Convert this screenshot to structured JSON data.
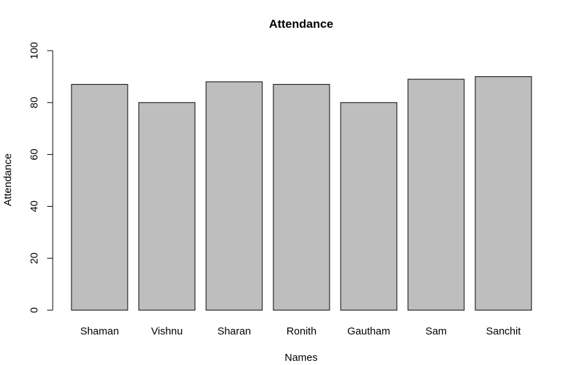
{
  "chart_data": {
    "type": "bar",
    "title": "Attendance",
    "xlabel": "Names",
    "ylabel": "Attendance",
    "categories": [
      "Shaman",
      "Vishnu",
      "Sharan",
      "Ronith",
      "Gautham",
      "Sam",
      "Sanchit"
    ],
    "values": [
      87,
      80,
      88,
      87,
      80,
      89,
      90
    ],
    "ylim": [
      0,
      100
    ],
    "yticks": [
      0,
      20,
      40,
      60,
      80,
      100
    ],
    "grid": false,
    "legend": "none",
    "bar_color": "#bebebe",
    "edge_color": "#000000"
  }
}
